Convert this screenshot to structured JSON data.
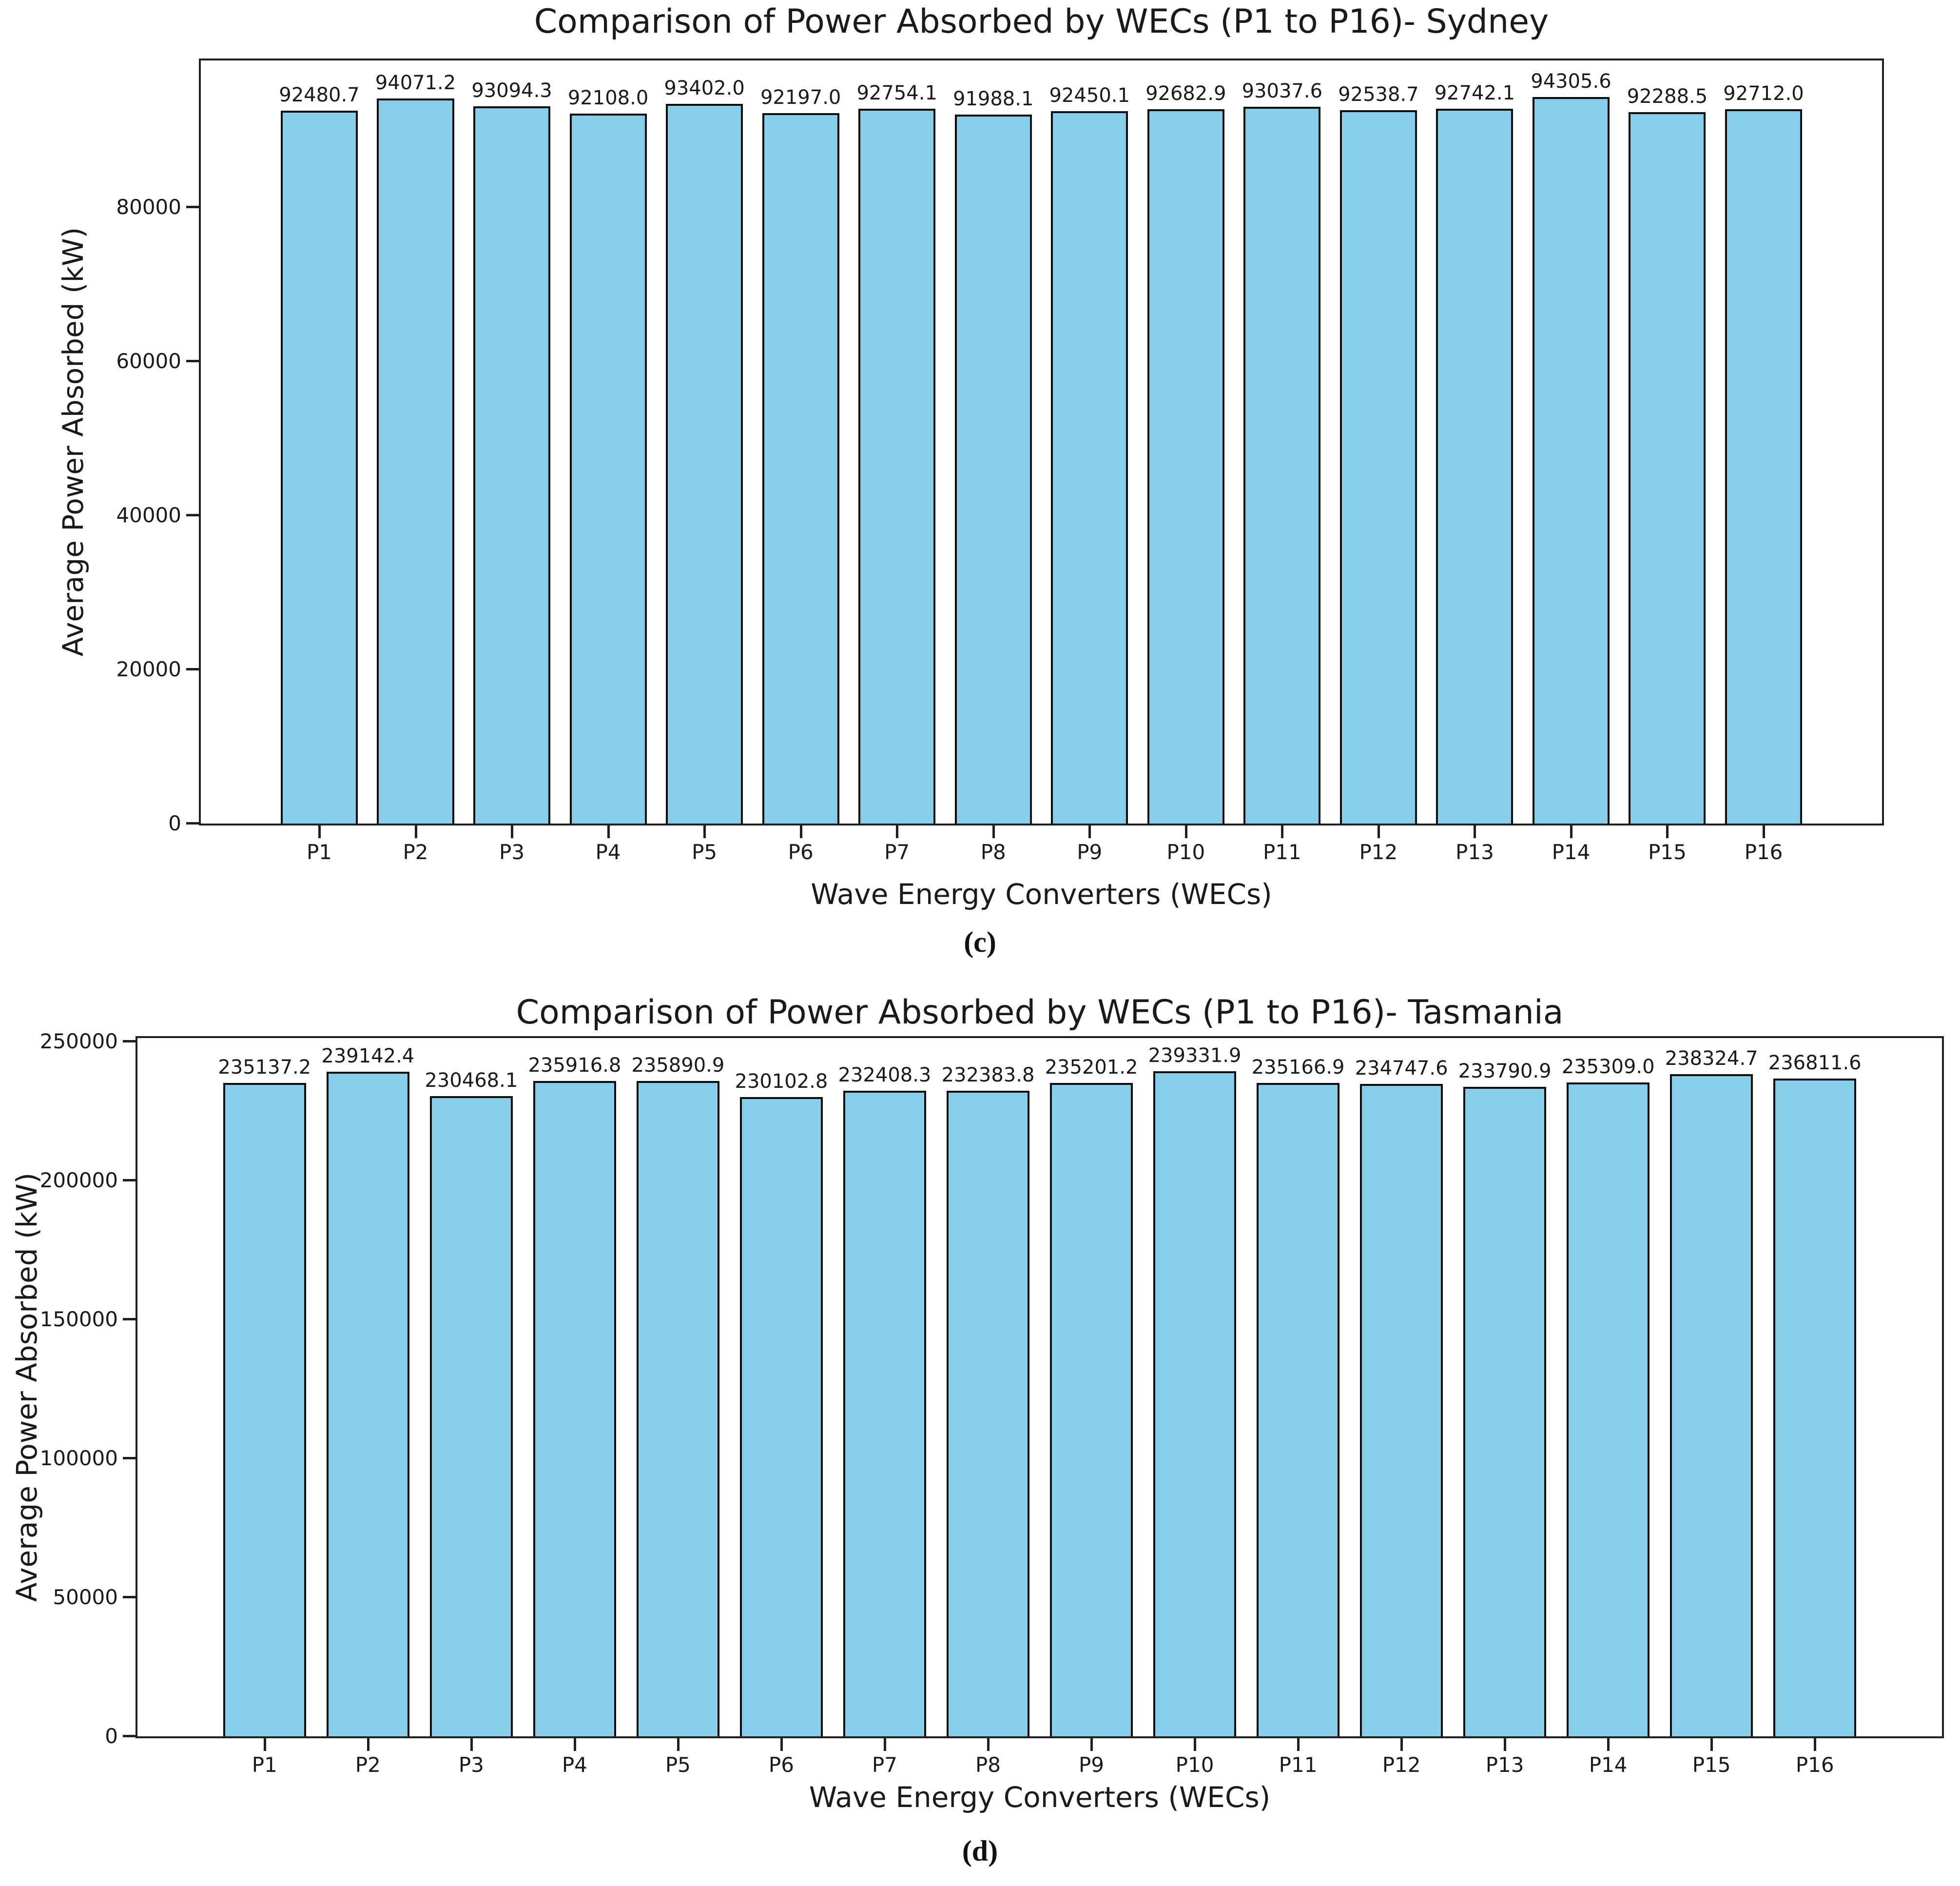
{
  "chart_data": [
    {
      "type": "bar",
      "title": "Comparison of Power Absorbed by WECs (P1 to P16)- Sydney",
      "xlabel": "Wave Energy Converters (WECs)",
      "ylabel": "Average Power Absorbed (kW)",
      "caption": "(c)",
      "categories": [
        "P1",
        "P2",
        "P3",
        "P4",
        "P5",
        "P6",
        "P7",
        "P8",
        "P9",
        "P10",
        "P11",
        "P12",
        "P13",
        "P14",
        "P15",
        "P16"
      ],
      "values": [
        92480.7,
        94071.2,
        93094.3,
        92108.0,
        93402.0,
        92197.0,
        92754.1,
        91988.1,
        92450.1,
        92682.9,
        93037.6,
        92538.7,
        92742.1,
        94305.6,
        92288.5,
        92712.0
      ],
      "value_label_decimals": 1,
      "yticks": [
        0,
        20000,
        40000,
        60000,
        80000
      ],
      "ylim": [
        0,
        99021
      ],
      "grid": false,
      "legend_position": "none",
      "bar_color": "#87CEEB",
      "bar_edge_color": "#0d0d0d"
    },
    {
      "type": "bar",
      "title": "Comparison of Power Absorbed by WECs (P1 to P16)- Tasmania",
      "xlabel": "Wave Energy Converters (WECs)",
      "ylabel": "Average Power Absorbed (kW)",
      "caption": "(d)",
      "categories": [
        "P1",
        "P2",
        "P3",
        "P4",
        "P5",
        "P6",
        "P7",
        "P8",
        "P9",
        "P10",
        "P11",
        "P12",
        "P13",
        "P14",
        "P15",
        "P16"
      ],
      "values": [
        235137.2,
        239142.4,
        230468.1,
        235916.8,
        235890.9,
        230102.8,
        232408.3,
        232383.8,
        235201.2,
        239331.9,
        235166.9,
        234747.6,
        233790.9,
        235309.0,
        238324.7,
        236811.6
      ],
      "value_label_decimals": 1,
      "yticks": [
        0,
        50000,
        100000,
        150000,
        200000,
        250000
      ],
      "ylim": [
        0,
        251298
      ],
      "grid": false,
      "legend_position": "none",
      "bar_color": "#87CEEB",
      "bar_edge_color": "#0d0d0d"
    }
  ]
}
